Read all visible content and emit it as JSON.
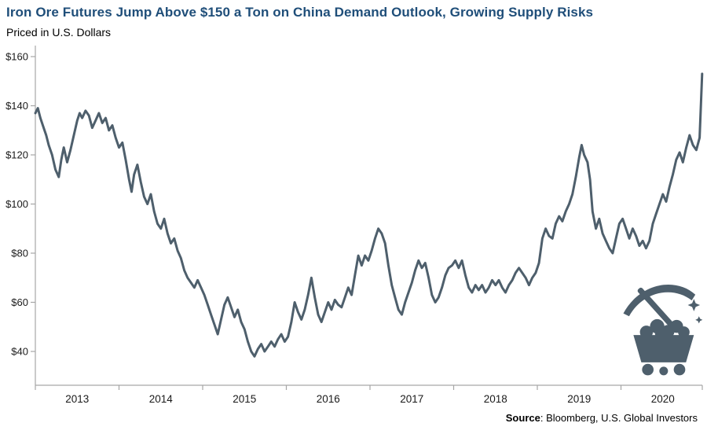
{
  "header": {
    "title": "Iron Ore Futures Jump Above $150 a Ton on China Demand Outlook, Growing Supply Risks",
    "title_color": "#1f4e79",
    "subtitle": "Priced in U.S. Dollars"
  },
  "footer": {
    "source_label": "Source",
    "source_text": ": Bloomberg, U.S. Global Investors"
  },
  "icons": {
    "bottom_right": "mining-cart-pickaxe-icon"
  },
  "chart_data": {
    "type": "line",
    "title": "Iron Ore Futures Jump Above $150 a Ton on China Demand Outlook, Growing Supply Risks",
    "subtitle": "Priced in U.S. Dollars",
    "xlabel": "",
    "ylabel": "Priced in U.S. Dollars",
    "ylim": [
      40,
      160
    ],
    "xlim": [
      2013,
      2021
    ],
    "grid": false,
    "legend": "none",
    "line_color": "#4e5f6c",
    "axis_color": "#a6a6a6",
    "tick_label_color": "#1a1a1a",
    "yticks": [
      {
        "value": 40,
        "label": "$40"
      },
      {
        "value": 60,
        "label": "$60"
      },
      {
        "value": 80,
        "label": "$80"
      },
      {
        "value": 100,
        "label": "$100"
      },
      {
        "value": 120,
        "label": "$120"
      },
      {
        "value": 140,
        "label": "$140"
      },
      {
        "value": 160,
        "label": "$160"
      }
    ],
    "xticks": [
      {
        "value": 2013,
        "label": "2013"
      },
      {
        "value": 2014,
        "label": "2014"
      },
      {
        "value": 2015,
        "label": "2015"
      },
      {
        "value": 2016,
        "label": "2016"
      },
      {
        "value": 2017,
        "label": "2017"
      },
      {
        "value": 2018,
        "label": "2018"
      },
      {
        "value": 2019,
        "label": "2019"
      },
      {
        "value": 2020,
        "label": "2020"
      }
    ],
    "points": [
      [
        2013.0,
        137
      ],
      [
        2013.03,
        139
      ],
      [
        2013.06,
        135
      ],
      [
        2013.1,
        131
      ],
      [
        2013.13,
        128
      ],
      [
        2013.16,
        124
      ],
      [
        2013.2,
        120
      ],
      [
        2013.24,
        114
      ],
      [
        2013.28,
        111
      ],
      [
        2013.31,
        118
      ],
      [
        2013.34,
        123
      ],
      [
        2013.38,
        117
      ],
      [
        2013.42,
        122
      ],
      [
        2013.46,
        128
      ],
      [
        2013.5,
        134
      ],
      [
        2013.53,
        137
      ],
      [
        2013.56,
        135
      ],
      [
        2013.6,
        138
      ],
      [
        2013.64,
        136
      ],
      [
        2013.68,
        131
      ],
      [
        2013.72,
        134
      ],
      [
        2013.76,
        137
      ],
      [
        2013.8,
        133
      ],
      [
        2013.84,
        135
      ],
      [
        2013.88,
        130
      ],
      [
        2013.92,
        132
      ],
      [
        2013.96,
        127
      ],
      [
        2014.0,
        123
      ],
      [
        2014.04,
        125
      ],
      [
        2014.08,
        118
      ],
      [
        2014.12,
        110
      ],
      [
        2014.15,
        105
      ],
      [
        2014.18,
        112
      ],
      [
        2014.22,
        116
      ],
      [
        2014.26,
        109
      ],
      [
        2014.3,
        103
      ],
      [
        2014.34,
        100
      ],
      [
        2014.38,
        104
      ],
      [
        2014.42,
        97
      ],
      [
        2014.46,
        92
      ],
      [
        2014.5,
        90
      ],
      [
        2014.54,
        94
      ],
      [
        2014.58,
        88
      ],
      [
        2014.62,
        84
      ],
      [
        2014.66,
        86
      ],
      [
        2014.7,
        81
      ],
      [
        2014.74,
        78
      ],
      [
        2014.78,
        73
      ],
      [
        2014.82,
        70
      ],
      [
        2014.86,
        68
      ],
      [
        2014.9,
        66
      ],
      [
        2014.94,
        69
      ],
      [
        2014.98,
        66
      ],
      [
        2015.02,
        63
      ],
      [
        2015.06,
        59
      ],
      [
        2015.1,
        55
      ],
      [
        2015.14,
        51
      ],
      [
        2015.18,
        47
      ],
      [
        2015.22,
        53
      ],
      [
        2015.26,
        59
      ],
      [
        2015.3,
        62
      ],
      [
        2015.34,
        58
      ],
      [
        2015.38,
        54
      ],
      [
        2015.42,
        57
      ],
      [
        2015.46,
        52
      ],
      [
        2015.5,
        49
      ],
      [
        2015.54,
        44
      ],
      [
        2015.58,
        40
      ],
      [
        2015.62,
        38
      ],
      [
        2015.66,
        41
      ],
      [
        2015.7,
        43
      ],
      [
        2015.74,
        40
      ],
      [
        2015.78,
        42
      ],
      [
        2015.82,
        44
      ],
      [
        2015.86,
        42
      ],
      [
        2015.9,
        45
      ],
      [
        2015.94,
        47
      ],
      [
        2015.98,
        44
      ],
      [
        2016.02,
        46
      ],
      [
        2016.06,
        52
      ],
      [
        2016.1,
        60
      ],
      [
        2016.14,
        56
      ],
      [
        2016.18,
        53
      ],
      [
        2016.22,
        57
      ],
      [
        2016.26,
        63
      ],
      [
        2016.3,
        70
      ],
      [
        2016.34,
        62
      ],
      [
        2016.38,
        55
      ],
      [
        2016.42,
        52
      ],
      [
        2016.46,
        56
      ],
      [
        2016.5,
        60
      ],
      [
        2016.54,
        57
      ],
      [
        2016.58,
        61
      ],
      [
        2016.62,
        59
      ],
      [
        2016.66,
        58
      ],
      [
        2016.7,
        62
      ],
      [
        2016.74,
        66
      ],
      [
        2016.78,
        63
      ],
      [
        2016.82,
        71
      ],
      [
        2016.86,
        79
      ],
      [
        2016.9,
        75
      ],
      [
        2016.94,
        79
      ],
      [
        2016.98,
        77
      ],
      [
        2017.02,
        81
      ],
      [
        2017.06,
        86
      ],
      [
        2017.1,
        90
      ],
      [
        2017.14,
        88
      ],
      [
        2017.18,
        84
      ],
      [
        2017.22,
        75
      ],
      [
        2017.26,
        67
      ],
      [
        2017.3,
        62
      ],
      [
        2017.34,
        57
      ],
      [
        2017.38,
        55
      ],
      [
        2017.42,
        60
      ],
      [
        2017.46,
        64
      ],
      [
        2017.5,
        68
      ],
      [
        2017.54,
        73
      ],
      [
        2017.58,
        77
      ],
      [
        2017.62,
        74
      ],
      [
        2017.66,
        76
      ],
      [
        2017.7,
        70
      ],
      [
        2017.74,
        63
      ],
      [
        2017.78,
        60
      ],
      [
        2017.82,
        62
      ],
      [
        2017.86,
        66
      ],
      [
        2017.9,
        71
      ],
      [
        2017.94,
        74
      ],
      [
        2017.98,
        75
      ],
      [
        2018.02,
        77
      ],
      [
        2018.06,
        74
      ],
      [
        2018.1,
        77
      ],
      [
        2018.14,
        71
      ],
      [
        2018.18,
        66
      ],
      [
        2018.22,
        64
      ],
      [
        2018.26,
        67
      ],
      [
        2018.3,
        65
      ],
      [
        2018.34,
        67
      ],
      [
        2018.38,
        64
      ],
      [
        2018.42,
        66
      ],
      [
        2018.46,
        69
      ],
      [
        2018.5,
        67
      ],
      [
        2018.54,
        69
      ],
      [
        2018.58,
        66
      ],
      [
        2018.62,
        64
      ],
      [
        2018.66,
        67
      ],
      [
        2018.7,
        69
      ],
      [
        2018.74,
        72
      ],
      [
        2018.78,
        74
      ],
      [
        2018.82,
        72
      ],
      [
        2018.86,
        70
      ],
      [
        2018.9,
        67
      ],
      [
        2018.94,
        70
      ],
      [
        2018.98,
        72
      ],
      [
        2019.02,
        76
      ],
      [
        2019.06,
        86
      ],
      [
        2019.1,
        90
      ],
      [
        2019.14,
        87
      ],
      [
        2019.18,
        86
      ],
      [
        2019.22,
        92
      ],
      [
        2019.26,
        95
      ],
      [
        2019.3,
        93
      ],
      [
        2019.34,
        97
      ],
      [
        2019.38,
        100
      ],
      [
        2019.42,
        104
      ],
      [
        2019.46,
        111
      ],
      [
        2019.5,
        119
      ],
      [
        2019.53,
        124
      ],
      [
        2019.56,
        120
      ],
      [
        2019.6,
        117
      ],
      [
        2019.63,
        110
      ],
      [
        2019.66,
        97
      ],
      [
        2019.7,
        90
      ],
      [
        2019.74,
        94
      ],
      [
        2019.78,
        88
      ],
      [
        2019.82,
        85
      ],
      [
        2019.86,
        82
      ],
      [
        2019.9,
        80
      ],
      [
        2019.94,
        86
      ],
      [
        2019.98,
        92
      ],
      [
        2020.02,
        94
      ],
      [
        2020.06,
        90
      ],
      [
        2020.1,
        86
      ],
      [
        2020.14,
        90
      ],
      [
        2020.18,
        87
      ],
      [
        2020.22,
        83
      ],
      [
        2020.26,
        85
      ],
      [
        2020.3,
        82
      ],
      [
        2020.34,
        85
      ],
      [
        2020.38,
        92
      ],
      [
        2020.42,
        96
      ],
      [
        2020.46,
        100
      ],
      [
        2020.5,
        104
      ],
      [
        2020.54,
        101
      ],
      [
        2020.58,
        107
      ],
      [
        2020.62,
        112
      ],
      [
        2020.66,
        118
      ],
      [
        2020.7,
        121
      ],
      [
        2020.74,
        117
      ],
      [
        2020.78,
        123
      ],
      [
        2020.82,
        128
      ],
      [
        2020.86,
        124
      ],
      [
        2020.9,
        122
      ],
      [
        2020.94,
        127
      ],
      [
        2020.97,
        153
      ]
    ]
  }
}
